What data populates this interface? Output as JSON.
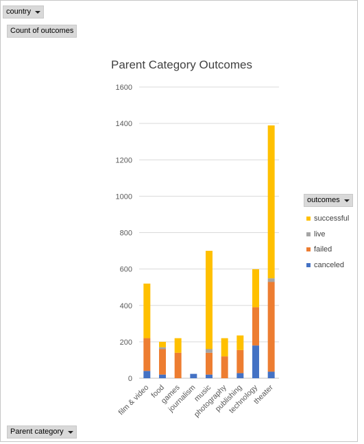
{
  "filter": {
    "label": "country"
  },
  "value_field": {
    "label": "Count of outcomes"
  },
  "axis_field": {
    "label": "Parent category"
  },
  "legend": {
    "title": "outcomes",
    "items": [
      {
        "label": "successful",
        "color": "#ffc000"
      },
      {
        "label": "live",
        "color": "#a5a5a5"
      },
      {
        "label": "failed",
        "color": "#ed7d31"
      },
      {
        "label": "canceled",
        "color": "#4472c4"
      }
    ]
  },
  "chart_data": {
    "type": "bar",
    "stacked": true,
    "title": "Parent Category Outcomes",
    "xlabel": "",
    "ylabel": "",
    "ylim": [
      0,
      1600
    ],
    "yticks": [
      0,
      200,
      400,
      600,
      800,
      1000,
      1200,
      1400,
      1600
    ],
    "grid": true,
    "legend_position": "right",
    "categories": [
      "film & video",
      "food",
      "games",
      "journalism",
      "music",
      "photography",
      "publishing",
      "technology",
      "theater"
    ],
    "series": [
      {
        "name": "canceled",
        "color": "#4472c4",
        "values": [
          40,
          20,
          0,
          24,
          20,
          0,
          28,
          180,
          36
        ]
      },
      {
        "name": "failed",
        "color": "#ed7d31",
        "values": [
          180,
          140,
          140,
          0,
          120,
          120,
          127,
          210,
          493
        ]
      },
      {
        "name": "live",
        "color": "#a5a5a5",
        "values": [
          0,
          10,
          0,
          0,
          20,
          0,
          0,
          0,
          20
        ]
      },
      {
        "name": "successful",
        "color": "#ffc000",
        "values": [
          300,
          30,
          80,
          0,
          540,
          100,
          80,
          209,
          840
        ]
      }
    ]
  }
}
